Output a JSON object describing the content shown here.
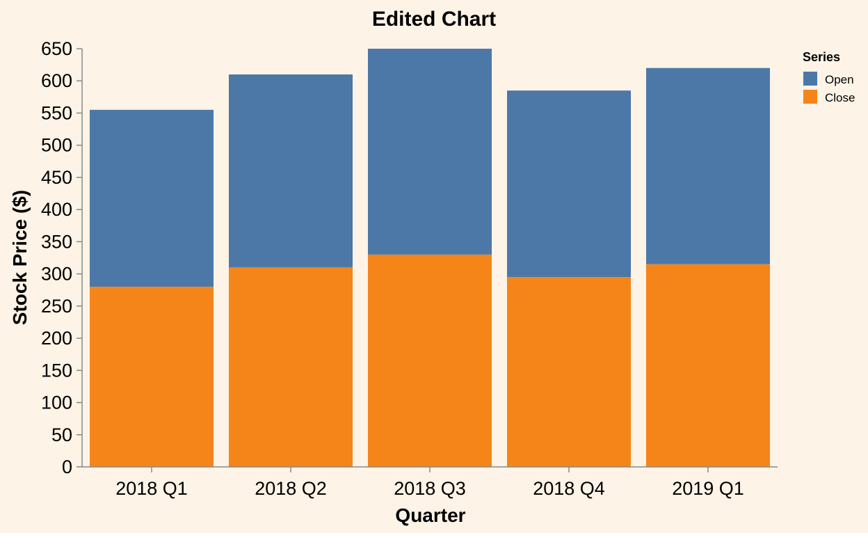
{
  "chart_data": {
    "type": "bar",
    "stacked": true,
    "title": "Edited Chart",
    "xlabel": "Quarter",
    "ylabel": "Stock Price ($)",
    "categories": [
      "2018 Q1",
      "2018 Q2",
      "2018 Q3",
      "2018 Q4",
      "2019 Q1"
    ],
    "series": [
      {
        "name": "Close",
        "color": "#f58518",
        "values": [
          280,
          310,
          330,
          295,
          315
        ]
      },
      {
        "name": "Open",
        "color": "#4c78a8",
        "values": [
          275,
          300,
          320,
          290,
          305
        ]
      }
    ],
    "ylim": [
      0,
      650
    ],
    "yticks": [
      0,
      50,
      100,
      150,
      200,
      250,
      300,
      350,
      400,
      450,
      500,
      550,
      600,
      650
    ],
    "grid": false,
    "legend": {
      "title": "Series",
      "position": "top-right",
      "entries": [
        {
          "label": "Open",
          "color": "#4c78a8"
        },
        {
          "label": "Close",
          "color": "#f58518"
        }
      ]
    }
  }
}
